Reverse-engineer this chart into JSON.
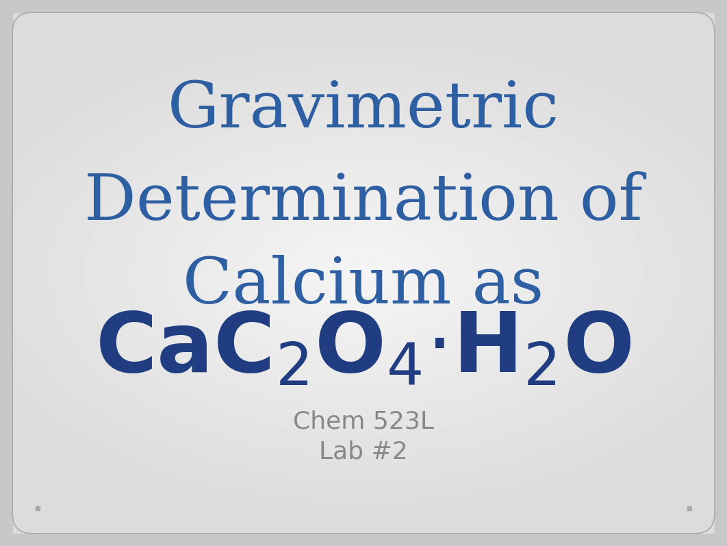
{
  "bg_outer": "#c8c8c8",
  "title_line1": "Gravimetric",
  "title_line2": "Determination of",
  "title_line3": "Calcium as",
  "title_color": "#2E5FA3",
  "title_fontsize": 68,
  "formula_color": "#1F3D80",
  "formula_fontsize": 88,
  "subtitle_line1": "Chem 523L",
  "subtitle_line2": "Lab #2",
  "subtitle_color": "#888888",
  "subtitle_fontsize": 26,
  "figsize": [
    10.62,
    7.97
  ]
}
